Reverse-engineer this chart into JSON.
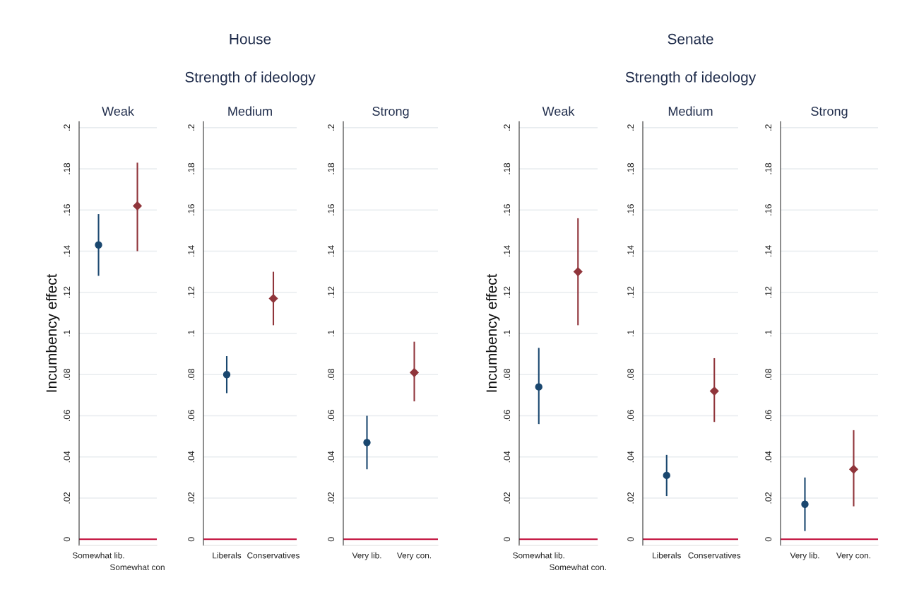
{
  "chart_data": [
    {
      "type": "scatter",
      "title": "Weak",
      "ylabel": "Incumbency effect",
      "categories": [
        "Somewhat lib.",
        "Somewhat con"
      ],
      "ylim": [
        -0.003,
        0.203
      ],
      "yticks": [
        {
          "value": 0,
          "label": "0"
        },
        {
          "value": 0.02,
          "label": ".02"
        },
        {
          "value": 0.04,
          "label": ".04"
        },
        {
          "value": 0.06,
          "label": ".06"
        },
        {
          "value": 0.08,
          "label": ".08"
        },
        {
          "value": 0.1,
          "label": ".1"
        },
        {
          "value": 0.12,
          "label": ".12"
        },
        {
          "value": 0.14,
          "label": ".14"
        },
        {
          "value": 0.16,
          "label": ".16"
        },
        {
          "value": 0.18,
          "label": ".18"
        },
        {
          "value": 0.2,
          "label": ".2"
        }
      ],
      "grid": "y",
      "ref_lines": [
        {
          "axis": "y",
          "value": 0,
          "color": "#c10534"
        }
      ],
      "series": [
        {
          "color": "#1a476f",
          "marker": "circle",
          "values": [
            0.143,
            null
          ],
          "errors": [
            [
              0.128,
              0.158
            ],
            null
          ]
        },
        {
          "color": "#90353b",
          "marker": "diamond",
          "values": [
            null,
            0.162
          ],
          "errors": [
            null,
            [
              0.14,
              0.183
            ]
          ]
        }
      ]
    },
    {
      "type": "scatter",
      "title": "Medium",
      "annotations": [
        "House",
        "Strength of ideology"
      ],
      "categories": [
        "Liberals",
        "Conservatives"
      ],
      "ylim": [
        -0.003,
        0.203
      ],
      "yticks": [
        {
          "value": 0,
          "label": "0"
        },
        {
          "value": 0.02,
          "label": ".02"
        },
        {
          "value": 0.04,
          "label": ".04"
        },
        {
          "value": 0.06,
          "label": ".06"
        },
        {
          "value": 0.08,
          "label": ".08"
        },
        {
          "value": 0.1,
          "label": ".1"
        },
        {
          "value": 0.12,
          "label": ".12"
        },
        {
          "value": 0.14,
          "label": ".14"
        },
        {
          "value": 0.16,
          "label": ".16"
        },
        {
          "value": 0.18,
          "label": ".18"
        },
        {
          "value": 0.2,
          "label": ".2"
        }
      ],
      "grid": "y",
      "ref_lines": [
        {
          "axis": "y",
          "value": 0,
          "color": "#c10534"
        }
      ],
      "series": [
        {
          "color": "#1a476f",
          "marker": "circle",
          "values": [
            0.08,
            null
          ],
          "errors": [
            [
              0.071,
              0.089
            ],
            null
          ]
        },
        {
          "color": "#90353b",
          "marker": "diamond",
          "values": [
            null,
            0.117
          ],
          "errors": [
            null,
            [
              0.104,
              0.13
            ]
          ]
        }
      ]
    },
    {
      "type": "scatter",
      "title": "Strong",
      "categories": [
        "Very lib.",
        "Very con."
      ],
      "ylim": [
        -0.003,
        0.203
      ],
      "yticks": [
        {
          "value": 0,
          "label": "0"
        },
        {
          "value": 0.02,
          "label": ".02"
        },
        {
          "value": 0.04,
          "label": ".04"
        },
        {
          "value": 0.06,
          "label": ".06"
        },
        {
          "value": 0.08,
          "label": ".08"
        },
        {
          "value": 0.1,
          "label": ".1"
        },
        {
          "value": 0.12,
          "label": ".12"
        },
        {
          "value": 0.14,
          "label": ".14"
        },
        {
          "value": 0.16,
          "label": ".16"
        },
        {
          "value": 0.18,
          "label": ".18"
        },
        {
          "value": 0.2,
          "label": ".2"
        }
      ],
      "grid": "y",
      "ref_lines": [
        {
          "axis": "y",
          "value": 0,
          "color": "#c10534"
        }
      ],
      "series": [
        {
          "color": "#1a476f",
          "marker": "circle",
          "values": [
            0.047,
            null
          ],
          "errors": [
            [
              0.034,
              0.06
            ],
            null
          ]
        },
        {
          "color": "#90353b",
          "marker": "diamond",
          "values": [
            null,
            0.081
          ],
          "errors": [
            null,
            [
              0.067,
              0.096
            ]
          ]
        }
      ]
    },
    {
      "type": "scatter",
      "title": "Weak",
      "ylabel": "Incumbency effect",
      "categories": [
        "Somewhat lib.",
        "Somewhat con."
      ],
      "ylim": [
        -0.003,
        0.203
      ],
      "yticks": [
        {
          "value": 0,
          "label": "0"
        },
        {
          "value": 0.02,
          "label": ".02"
        },
        {
          "value": 0.04,
          "label": ".04"
        },
        {
          "value": 0.06,
          "label": ".06"
        },
        {
          "value": 0.08,
          "label": ".08"
        },
        {
          "value": 0.1,
          "label": ".1"
        },
        {
          "value": 0.12,
          "label": ".12"
        },
        {
          "value": 0.14,
          "label": ".14"
        },
        {
          "value": 0.16,
          "label": ".16"
        },
        {
          "value": 0.18,
          "label": ".18"
        },
        {
          "value": 0.2,
          "label": ".2"
        }
      ],
      "grid": "y",
      "ref_lines": [
        {
          "axis": "y",
          "value": 0,
          "color": "#c10534"
        }
      ],
      "series": [
        {
          "color": "#1a476f",
          "marker": "circle",
          "values": [
            0.074,
            null
          ],
          "errors": [
            [
              0.056,
              0.093
            ],
            null
          ]
        },
        {
          "color": "#90353b",
          "marker": "diamond",
          "values": [
            null,
            0.13
          ],
          "errors": [
            null,
            [
              0.104,
              0.156
            ]
          ]
        }
      ]
    },
    {
      "type": "scatter",
      "title": "Medium",
      "annotations": [
        "Senate",
        "Strength of ideology"
      ],
      "categories": [
        "Liberals",
        "Conservatives"
      ],
      "ylim": [
        -0.003,
        0.203
      ],
      "yticks": [
        {
          "value": 0,
          "label": "0"
        },
        {
          "value": 0.02,
          "label": ".02"
        },
        {
          "value": 0.04,
          "label": ".04"
        },
        {
          "value": 0.06,
          "label": ".06"
        },
        {
          "value": 0.08,
          "label": ".08"
        },
        {
          "value": 0.1,
          "label": ".1"
        },
        {
          "value": 0.12,
          "label": ".12"
        },
        {
          "value": 0.14,
          "label": ".14"
        },
        {
          "value": 0.16,
          "label": ".16"
        },
        {
          "value": 0.18,
          "label": ".18"
        },
        {
          "value": 0.2,
          "label": ".2"
        }
      ],
      "grid": "y",
      "ref_lines": [
        {
          "axis": "y",
          "value": 0,
          "color": "#c10534"
        }
      ],
      "series": [
        {
          "color": "#1a476f",
          "marker": "circle",
          "values": [
            0.031,
            null
          ],
          "errors": [
            [
              0.021,
              0.041
            ],
            null
          ]
        },
        {
          "color": "#90353b",
          "marker": "diamond",
          "values": [
            null,
            0.072
          ],
          "errors": [
            null,
            [
              0.057,
              0.088
            ]
          ]
        }
      ]
    },
    {
      "type": "scatter",
      "title": "Strong",
      "categories": [
        "Very lib.",
        "Very con."
      ],
      "ylim": [
        -0.003,
        0.203
      ],
      "yticks": [
        {
          "value": 0,
          "label": "0"
        },
        {
          "value": 0.02,
          "label": ".02"
        },
        {
          "value": 0.04,
          "label": ".04"
        },
        {
          "value": 0.06,
          "label": ".06"
        },
        {
          "value": 0.08,
          "label": ".08"
        },
        {
          "value": 0.1,
          "label": ".1"
        },
        {
          "value": 0.12,
          "label": ".12"
        },
        {
          "value": 0.14,
          "label": ".14"
        },
        {
          "value": 0.16,
          "label": ".16"
        },
        {
          "value": 0.18,
          "label": ".18"
        },
        {
          "value": 0.2,
          "label": ".2"
        }
      ],
      "grid": "y",
      "ref_lines": [
        {
          "axis": "y",
          "value": 0,
          "color": "#c10534"
        }
      ],
      "series": [
        {
          "color": "#1a476f",
          "marker": "circle",
          "values": [
            0.017,
            null
          ],
          "errors": [
            [
              0.004,
              0.03
            ],
            null
          ]
        },
        {
          "color": "#90353b",
          "marker": "diamond",
          "values": [
            null,
            0.034
          ],
          "errors": [
            null,
            [
              0.016,
              0.053
            ]
          ]
        }
      ]
    }
  ]
}
